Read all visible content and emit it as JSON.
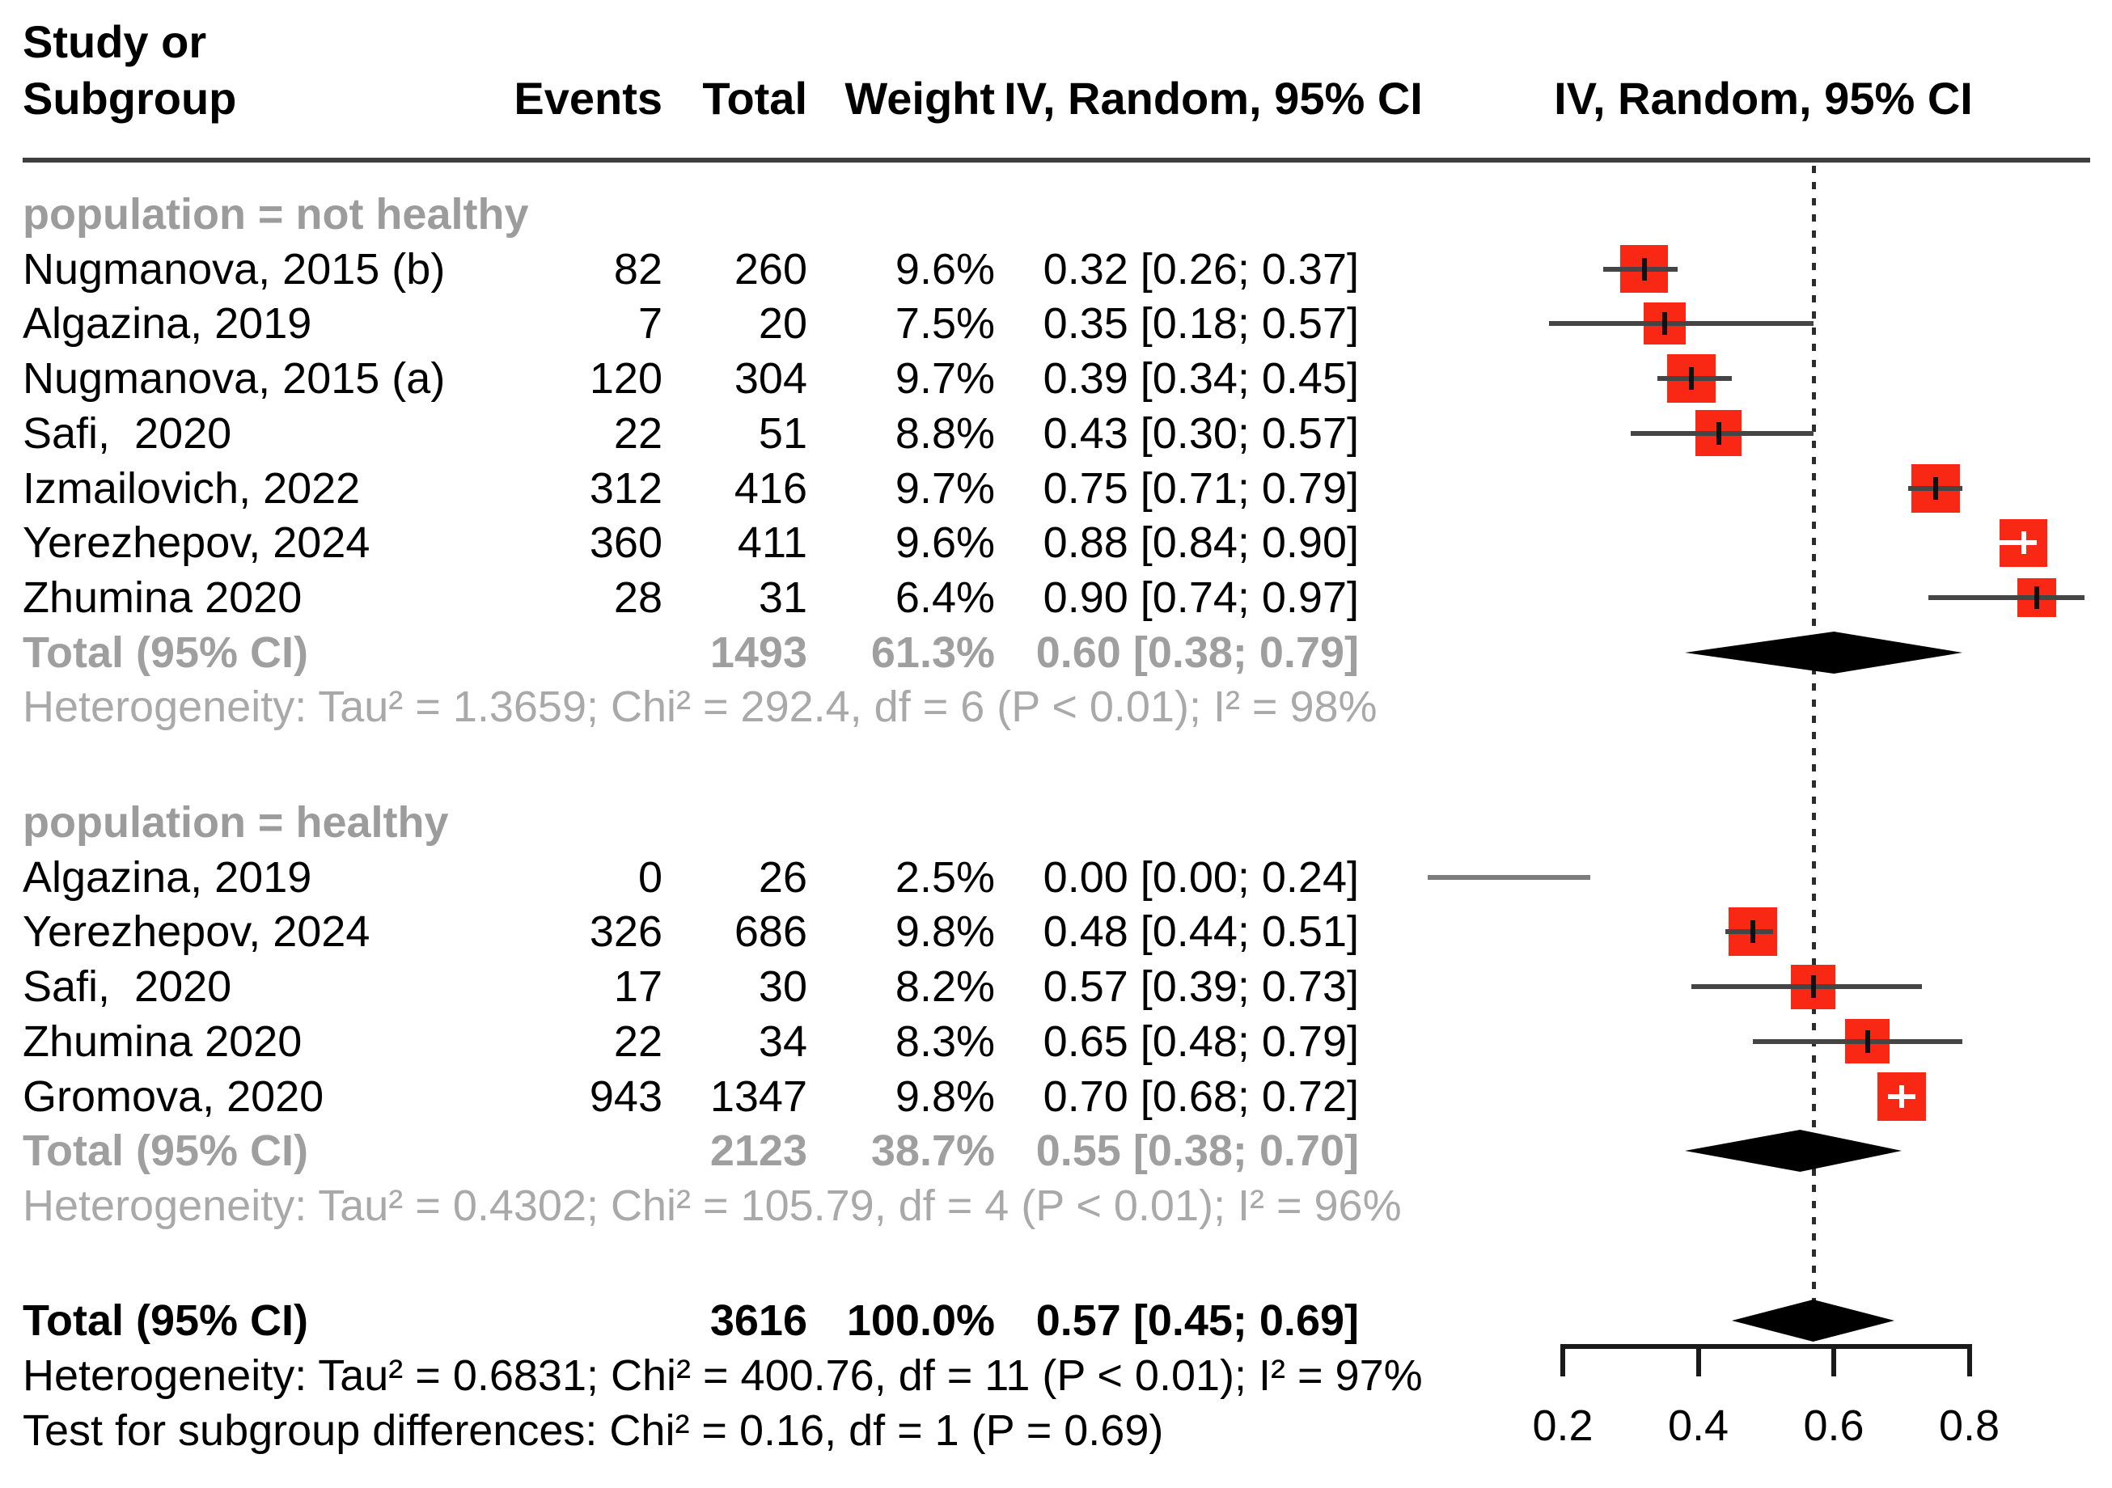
{
  "header": {
    "study_line1": "Study or",
    "study_line2": "Subgroup",
    "events": "Events",
    "total": "Total",
    "weight": "Weight",
    "effect_ci": "IV, Random, 95% CI",
    "plot_ci": "IV, Random, 95% CI"
  },
  "colors": {
    "square": "#f82815",
    "diamond": "#000000",
    "ci_line": "#454545",
    "ci_line_no_square": "#7d7d7d",
    "subgroup_text": "#9c9c9c",
    "heterogeneity_text": "#a9a9a9",
    "reference_line": "#2c2c2c"
  },
  "chart_data": {
    "type": "forest",
    "effect_label": "IV, Random, 95% CI",
    "x_domain": [
      0.2,
      0.8
    ],
    "reference_line": 0.57,
    "axis_ticks": [
      {
        "label": "0.2",
        "value": 0.2
      },
      {
        "label": "0.4",
        "value": 0.4
      },
      {
        "label": "0.6",
        "value": 0.6
      },
      {
        "label": "0.8",
        "value": 0.8
      }
    ],
    "groups": [
      {
        "label": "population = not healthy",
        "studies": [
          {
            "name": "Nugmanova, 2015 (b)",
            "events": "82",
            "total": "260",
            "weight": "9.6%",
            "weight_pct": 9.6,
            "est": 0.32,
            "lo": 0.26,
            "hi": 0.37,
            "ci_text": "0.32 [0.26; 0.37]"
          },
          {
            "name": "Algazina, 2019",
            "events": "7",
            "total": "20",
            "weight": "7.5%",
            "weight_pct": 7.5,
            "est": 0.35,
            "lo": 0.18,
            "hi": 0.57,
            "ci_text": "0.35 [0.18; 0.57]"
          },
          {
            "name": "Nugmanova, 2015 (a)",
            "events": "120",
            "total": "304",
            "weight": "9.7%",
            "weight_pct": 9.7,
            "est": 0.39,
            "lo": 0.34,
            "hi": 0.45,
            "ci_text": "0.39 [0.34; 0.45]"
          },
          {
            "name": "Safi,  2020",
            "events": "22",
            "total": "51",
            "weight": "8.8%",
            "weight_pct": 8.8,
            "est": 0.43,
            "lo": 0.3,
            "hi": 0.57,
            "ci_text": "0.43 [0.30; 0.57]"
          },
          {
            "name": "Izmailovich, 2022",
            "events": "312",
            "total": "416",
            "weight": "9.7%",
            "weight_pct": 9.7,
            "est": 0.75,
            "lo": 0.71,
            "hi": 0.79,
            "ci_text": "0.75 [0.71; 0.79]"
          },
          {
            "name": "Yerezhepov, 2024",
            "events": "360",
            "total": "411",
            "weight": "9.6%",
            "weight_pct": 9.6,
            "est": 0.88,
            "lo": 0.84,
            "hi": 0.9,
            "ci_text": "0.88 [0.84; 0.90]"
          },
          {
            "name": "Zhumina 2020",
            "events": "28",
            "total": "31",
            "weight": "6.4%",
            "weight_pct": 6.4,
            "est": 0.9,
            "lo": 0.74,
            "hi": 0.97,
            "ci_text": "0.90 [0.74; 0.97]"
          }
        ],
        "total_row": {
          "label": "Total (95% CI)",
          "total": "1493",
          "weight": "61.3%",
          "est": 0.6,
          "lo": 0.38,
          "hi": 0.79,
          "ci_text": "0.60 [0.38; 0.79]"
        },
        "heterogeneity": "Heterogeneity: Tau² = 1.3659; Chi² = 292.4, df = 6 (P < 0.01); I² = 98%"
      },
      {
        "label": "population = healthy",
        "studies": [
          {
            "name": "Algazina, 2019",
            "events": "0",
            "total": "26",
            "weight": "2.5%",
            "weight_pct": 2.5,
            "est": 0.0,
            "lo": 0.0,
            "hi": 0.24,
            "ci_text": "0.00 [0.00; 0.24]",
            "line_only": true
          },
          {
            "name": "Yerezhepov, 2024",
            "events": "326",
            "total": "686",
            "weight": "9.8%",
            "weight_pct": 9.8,
            "est": 0.48,
            "lo": 0.44,
            "hi": 0.51,
            "ci_text": "0.48 [0.44; 0.51]"
          },
          {
            "name": "Safi,  2020",
            "events": "17",
            "total": "30",
            "weight": "8.2%",
            "weight_pct": 8.2,
            "est": 0.57,
            "lo": 0.39,
            "hi": 0.73,
            "ci_text": "0.57 [0.39; 0.73]"
          },
          {
            "name": "Zhumina 2020",
            "events": "22",
            "total": "34",
            "weight": "8.3%",
            "weight_pct": 8.3,
            "est": 0.65,
            "lo": 0.48,
            "hi": 0.79,
            "ci_text": "0.65 [0.48; 0.79]"
          },
          {
            "name": "Gromova, 2020",
            "events": "943",
            "total": "1347",
            "weight": "9.8%",
            "weight_pct": 9.8,
            "est": 0.7,
            "lo": 0.68,
            "hi": 0.72,
            "ci_text": "0.70 [0.68; 0.72]"
          }
        ],
        "total_row": {
          "label": "Total (95% CI)",
          "total": "2123",
          "weight": "38.7%",
          "est": 0.55,
          "lo": 0.38,
          "hi": 0.7,
          "ci_text": "0.55 [0.38; 0.70]"
        },
        "heterogeneity": "Heterogeneity: Tau² = 0.4302; Chi² = 105.79, df = 4 (P < 0.01); I² = 96%"
      }
    ],
    "overall": {
      "label": "Total (95% CI)",
      "total": "3616",
      "weight": "100.0%",
      "est": 0.57,
      "lo": 0.45,
      "hi": 0.69,
      "ci_text": "0.57 [0.45; 0.69]",
      "heterogeneity": "Heterogeneity: Tau² = 0.6831; Chi² = 400.76, df = 11 (P < 0.01); I² = 97%",
      "subgroup_test": "Test for subgroup differences: Chi² = 0.16, df = 1 (P = 0.69)"
    }
  }
}
